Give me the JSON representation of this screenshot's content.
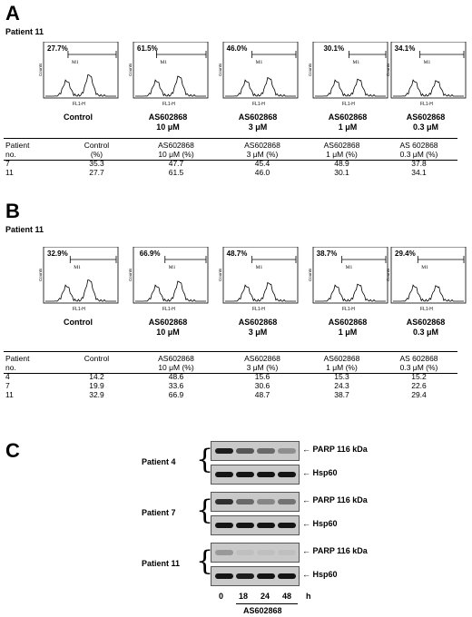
{
  "panelA": {
    "letter": "A",
    "patient_label": "Patient 11",
    "histograms": [
      {
        "pct": "27.7%",
        "gate": "M1",
        "xlabel": "FL1-H",
        "ylabel": "Counts",
        "l1": "Control",
        "l2": ""
      },
      {
        "pct": "61.5%",
        "gate": "M1",
        "xlabel": "FL1-H",
        "ylabel": "Counts",
        "l1": "AS602868",
        "l2": "10 μM"
      },
      {
        "pct": "46.0%",
        "gate": "M1",
        "xlabel": "FL1-H",
        "ylabel": "Counts",
        "l1": "AS602868",
        "l2": "3 μM"
      },
      {
        "pct": "30.1%",
        "gate": "M1",
        "xlabel": "FL1-H",
        "ylabel": "Counts",
        "l1": "AS602868",
        "l2": "1 μM"
      },
      {
        "pct": "34.1%",
        "gate": "M1",
        "xlabel": "FL1-H",
        "ylabel": "Counts",
        "l1": "AS602868",
        "l2": "0.3 μM"
      }
    ],
    "table": {
      "header1": [
        "Patient",
        "Control",
        "AS602868",
        "AS602868",
        "AS602868",
        "AS 602868"
      ],
      "header2": [
        "no.",
        "(%)",
        "10 μM (%)",
        "3 μM (%)",
        "1 μM (%)",
        "0.3  μM (%)"
      ],
      "rows": [
        [
          "7",
          "35.3",
          "47.7",
          "45.4",
          "48.9",
          "37.8"
        ],
        [
          "11",
          "27.7",
          "61.5",
          "46.0",
          "30.1",
          "34.1"
        ]
      ]
    }
  },
  "panelB": {
    "letter": "B",
    "patient_label": "Patient 11",
    "histograms": [
      {
        "pct": "32.9%",
        "gate": "M1",
        "xlabel": "FL1-H",
        "ylabel": "Counts",
        "l1": "Control",
        "l2": ""
      },
      {
        "pct": "66.9%",
        "gate": "M1",
        "xlabel": "FL1-H",
        "ylabel": "Counts",
        "l1": "AS602868",
        "l2": "10 μM"
      },
      {
        "pct": "48.7%",
        "gate": "M1",
        "xlabel": "FL1-H",
        "ylabel": "Counts",
        "l1": "AS602868",
        "l2": "3 μM"
      },
      {
        "pct": "38.7%",
        "gate": "M1",
        "xlabel": "FL1-H",
        "ylabel": "Counts",
        "l1": "AS602868",
        "l2": "1 μM"
      },
      {
        "pct": "29.4%",
        "gate": "M1",
        "xlabel": "FL1-H",
        "ylabel": "Counts",
        "l1": "AS602868",
        "l2": "0.3 μM"
      }
    ],
    "table": {
      "header1": [
        "Patient",
        "Control",
        "AS602868",
        "AS602868",
        "AS602868",
        "AS 602868"
      ],
      "header2": [
        "no.",
        "",
        "10  μM (%)",
        "3  μM (%)",
        "1  μM (%)",
        "0.3  μM (%)"
      ],
      "rows": [
        [
          "4",
          "14.2",
          "48.6",
          "15.6",
          "15.3",
          "15.2"
        ],
        [
          "7",
          "19.9",
          "33.6",
          "30.6",
          "24.3",
          "22.6"
        ],
        [
          "11",
          "32.9",
          "66.9",
          "48.7",
          "38.7",
          "29.4"
        ]
      ]
    }
  },
  "panelC": {
    "letter": "C",
    "patients": [
      {
        "label": "Patient 4",
        "parp": "PARP 116 kDa",
        "hsp": "Hsp60"
      },
      {
        "label": "Patient 7",
        "parp": "PARP 116 kDa",
        "hsp": "Hsp60"
      },
      {
        "label": "Patient 11",
        "parp": "PARP 116 kDa",
        "hsp": "Hsp60"
      }
    ],
    "timepoints": [
      "0",
      "18",
      "24",
      "48",
      "h"
    ],
    "drug_label": "AS602868"
  }
}
